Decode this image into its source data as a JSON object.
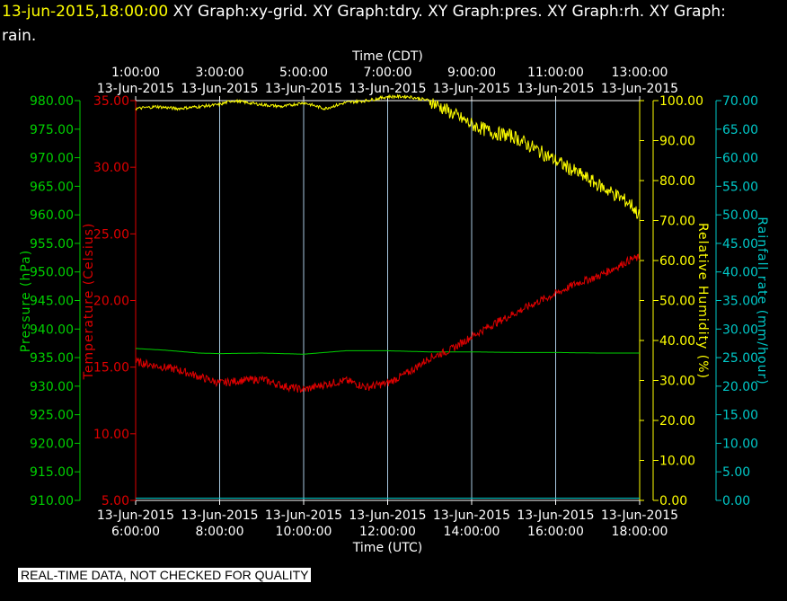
{
  "header": {
    "timestamp": "13-jun-2015,18:00:00",
    "title_rest": "  XY Graph:xy-grid.  XY Graph:tdry.  XY Graph:pres.  XY Graph:rh.  XY Graph:",
    "title_line2": "rain."
  },
  "disclaimer": "REAL-TIME DATA, NOT CHECKED FOR QUALITY",
  "colors": {
    "pressure": "#00d000",
    "temperature": "#e00000",
    "humidity": "#ffff00",
    "rain": "#00c8c8",
    "grid": "#a8c8e0"
  },
  "chart_data": {
    "type": "line",
    "x_top": {
      "title": "Time (CDT)",
      "ticks": [
        {
          "time": "1:00:00",
          "date": "13-Jun-2015"
        },
        {
          "time": "3:00:00",
          "date": "13-Jun-2015"
        },
        {
          "time": "5:00:00",
          "date": "13-Jun-2015"
        },
        {
          "time": "7:00:00",
          "date": "13-Jun-2015"
        },
        {
          "time": "9:00:00",
          "date": "13-Jun-2015"
        },
        {
          "time": "11:00:00",
          "date": "13-Jun-2015"
        },
        {
          "time": "13:00:00",
          "date": "13-Jun-2015"
        }
      ]
    },
    "x_bottom": {
      "title": "Time (UTC)",
      "ticks": [
        {
          "time": "6:00:00",
          "date": "13-Jun-2015"
        },
        {
          "time": "8:00:00",
          "date": "13-Jun-2015"
        },
        {
          "time": "10:00:00",
          "date": "13-Jun-2015"
        },
        {
          "time": "12:00:00",
          "date": "13-Jun-2015"
        },
        {
          "time": "14:00:00",
          "date": "13-Jun-2015"
        },
        {
          "time": "16:00:00",
          "date": "13-Jun-2015"
        },
        {
          "time": "18:00:00",
          "date": "13-Jun-2015"
        }
      ],
      "range_hours_utc": [
        6,
        18
      ]
    },
    "axes": {
      "pressure": {
        "label": "Pressure (hPa)",
        "range": [
          910,
          980
        ],
        "ticks": [
          "910.00",
          "915.00",
          "920.00",
          "925.00",
          "930.00",
          "935.00",
          "940.00",
          "945.00",
          "950.00",
          "955.00",
          "960.00",
          "965.00",
          "970.00",
          "975.00",
          "980.00"
        ]
      },
      "temperature": {
        "label": "Temperature (Celsius)",
        "range": [
          5,
          35
        ],
        "ticks": [
          "5.00",
          "10.00",
          "15.00",
          "20.00",
          "25.00",
          "30.00",
          "35.00"
        ]
      },
      "humidity": {
        "label": "Relative Humidity (%)",
        "range": [
          0,
          100
        ],
        "ticks": [
          "0.00",
          "10.00",
          "20.00",
          "30.00",
          "40.00",
          "50.00",
          "60.00",
          "70.00",
          "80.00",
          "90.00",
          "100.00"
        ]
      },
      "rain": {
        "label": "Rainfall rate (mm/hour)",
        "range": [
          0,
          70
        ],
        "ticks": [
          "0.00",
          "5.00",
          "10.00",
          "15.00",
          "20.00",
          "25.00",
          "30.00",
          "35.00",
          "40.00",
          "45.00",
          "50.00",
          "55.00",
          "60.00",
          "65.00",
          "70.00"
        ]
      }
    },
    "series": [
      {
        "axis": "pressure",
        "x": [
          6,
          6.7,
          7.5,
          8,
          9,
          10,
          10.5,
          11,
          12,
          13,
          13.5,
          14,
          15,
          16,
          17,
          18
        ],
        "y": [
          936.6,
          936.3,
          935.8,
          935.7,
          935.8,
          935.6,
          935.9,
          936.2,
          936.2,
          936.0,
          936.0,
          936.0,
          935.9,
          935.9,
          935.8,
          935.8
        ]
      },
      {
        "axis": "temperature",
        "x": [
          6,
          6.5,
          7,
          7.5,
          8,
          8.5,
          9,
          9.5,
          10,
          10.5,
          11,
          11.5,
          12,
          12.5,
          13,
          13.5,
          14,
          14.5,
          15,
          15.5,
          16,
          16.5,
          17,
          17.5,
          17.8,
          18
        ],
        "y": [
          15.4,
          15.1,
          14.8,
          14.3,
          13.8,
          14.0,
          14.1,
          13.6,
          13.3,
          13.7,
          14.0,
          13.5,
          13.8,
          14.6,
          15.7,
          16.3,
          17.3,
          18.2,
          19.0,
          19.8,
          20.5,
          21.3,
          21.8,
          22.6,
          23.1,
          23.2
        ]
      },
      {
        "axis": "humidity",
        "x": [
          6,
          6.5,
          7,
          7.5,
          8,
          8.3,
          9,
          9.5,
          10,
          10.5,
          11,
          11.5,
          12,
          12.5,
          13,
          13.5,
          14,
          14.5,
          15,
          15.5,
          16,
          16.5,
          17,
          17.5,
          17.8,
          18
        ],
        "y": [
          98.0,
          98.5,
          98.0,
          98.5,
          99.0,
          100.0,
          99.0,
          98.5,
          99.5,
          98.0,
          99.5,
          100.0,
          101.0,
          101.0,
          100.0,
          97.0,
          94.0,
          92.0,
          91.0,
          88.0,
          85.0,
          82.0,
          79.0,
          76.0,
          74.0,
          71.0
        ]
      },
      {
        "axis": "rain",
        "x": [
          6,
          18
        ],
        "y": [
          0.4,
          0.4
        ]
      }
    ]
  }
}
